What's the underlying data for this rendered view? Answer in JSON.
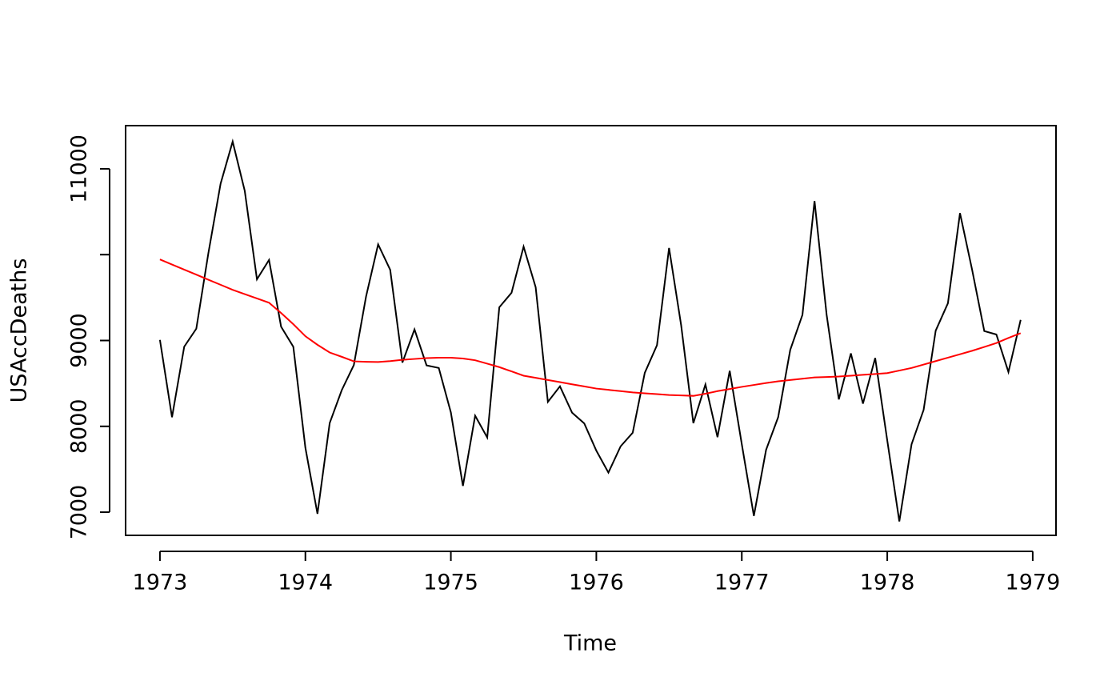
{
  "chart_data": {
    "type": "line",
    "x_label": "Time",
    "y_label": "USAccDeaths",
    "x": [
      1973,
      1973.083,
      1973.167,
      1973.25,
      1973.333,
      1973.417,
      1973.5,
      1973.583,
      1973.667,
      1973.75,
      1973.833,
      1973.917,
      1974,
      1974.083,
      1974.167,
      1974.25,
      1974.333,
      1974.417,
      1974.5,
      1974.583,
      1974.667,
      1974.75,
      1974.833,
      1974.917,
      1975,
      1975.083,
      1975.167,
      1975.25,
      1975.333,
      1975.417,
      1975.5,
      1975.583,
      1975.667,
      1975.75,
      1975.833,
      1975.917,
      1976,
      1976.083,
      1976.167,
      1976.25,
      1976.333,
      1976.417,
      1976.5,
      1976.583,
      1976.667,
      1976.75,
      1976.833,
      1976.917,
      1977,
      1977.083,
      1977.167,
      1977.25,
      1977.333,
      1977.417,
      1977.5,
      1977.583,
      1977.667,
      1977.75,
      1977.833,
      1977.917,
      1978,
      1978.083,
      1978.167,
      1978.25,
      1978.333,
      1978.417,
      1978.5,
      1978.583,
      1978.667,
      1978.75,
      1978.833,
      1978.917
    ],
    "series": [
      {
        "color": "#000000",
        "values": [
          9007,
          8106,
          8928,
          9137,
          10017,
          10826,
          11317,
          10744,
          9713,
          9938,
          9161,
          8927,
          7750,
          6981,
          8038,
          8422,
          8714,
          9512,
          10120,
          9823,
          8743,
          9129,
          8710,
          8680,
          8162,
          7306,
          8124,
          7870,
          9387,
          9556,
          10093,
          9620,
          8285,
          8466,
          8160,
          8034,
          7717,
          7461,
          7767,
          7925,
          8623,
          8945,
          10078,
          9179,
          8037,
          8488,
          7874,
          8647,
          7792,
          6957,
          7726,
          8106,
          8890,
          9299,
          10625,
          9302,
          8314,
          8850,
          8265,
          8796,
          7836,
          6892,
          7791,
          8192,
          9115,
          9434,
          10484,
          9827,
          9110,
          9070,
          8633,
          9240
        ]
      },
      {
        "color": "#ff0000",
        "values": [
          9944,
          9885,
          9826,
          9767,
          9708,
          9649,
          9590,
          9540,
          9490,
          9440,
          9320,
          9190,
          9050,
          8950,
          8860,
          8810,
          8757,
          8752,
          8750,
          8760,
          8775,
          8785,
          8795,
          8800,
          8800,
          8790,
          8770,
          8730,
          8690,
          8640,
          8590,
          8565,
          8540,
          8515,
          8490,
          8465,
          8440,
          8425,
          8410,
          8395,
          8385,
          8375,
          8365,
          8360,
          8355,
          8380,
          8410,
          8435,
          8460,
          8482,
          8505,
          8525,
          8540,
          8555,
          8570,
          8575,
          8580,
          8590,
          8600,
          8610,
          8620,
          8650,
          8680,
          8720,
          8760,
          8800,
          8840,
          8880,
          8925,
          8970,
          9030,
          9085
        ]
      }
    ],
    "xlim": [
      1972.764,
      1979.16
    ],
    "xticks": [
      1973,
      1974,
      1975,
      1976,
      1977,
      1978,
      1979
    ],
    "ylim": [
      6730,
      11503
    ],
    "yticks": [
      7000,
      8000,
      9000,
      {
        "value": 10000,
        "label": null
      },
      11000
    ]
  }
}
